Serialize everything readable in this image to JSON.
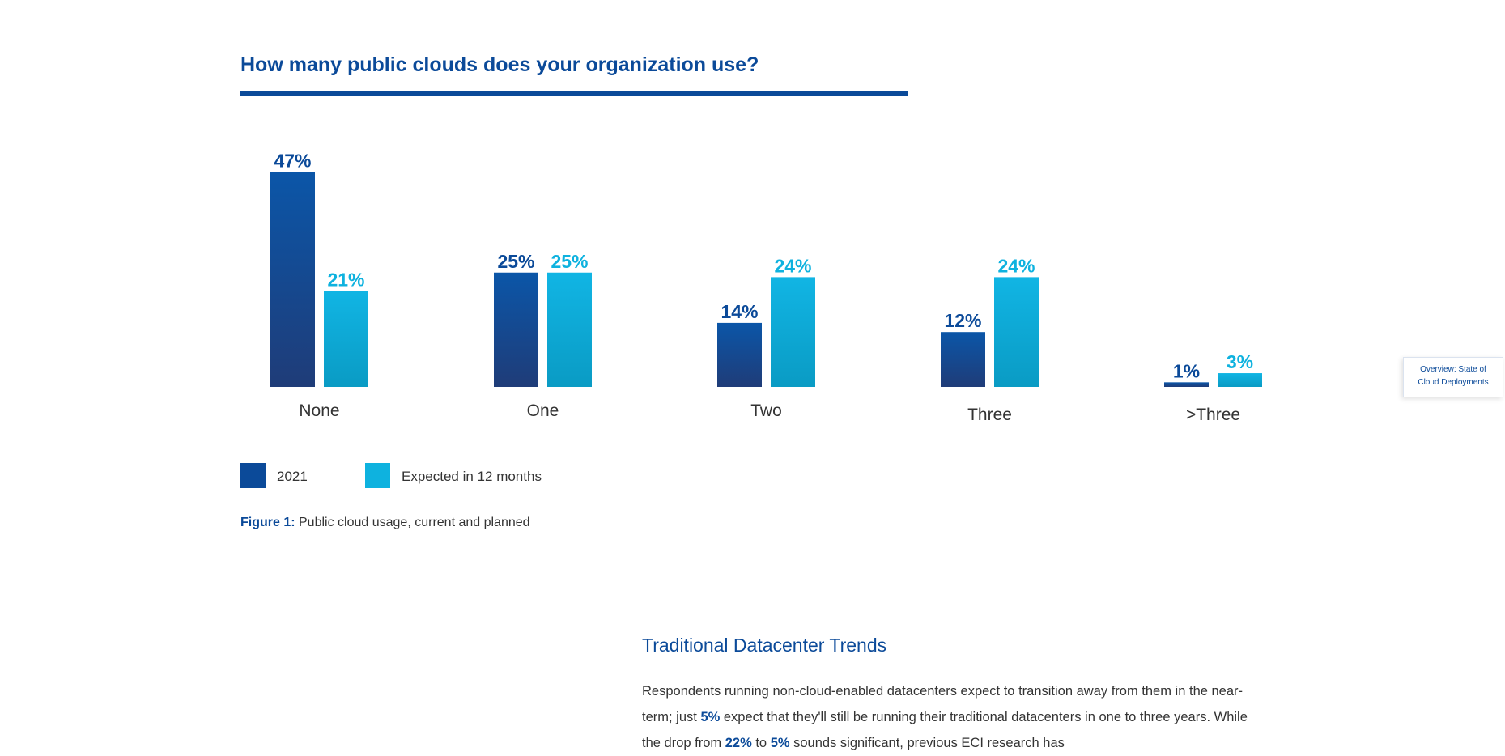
{
  "chart_data": {
    "type": "bar",
    "title": "How many public clouds does your organization use?",
    "categories": [
      "None",
      "One",
      "Two",
      "Three",
      ">Three"
    ],
    "series": [
      {
        "name": "2021",
        "values": [
          47,
          25,
          14,
          12,
          1
        ],
        "color": "#0b4a99"
      },
      {
        "name": "Expected in 12 months",
        "values": [
          21,
          25,
          24,
          24,
          3
        ],
        "color": "#0eb2df"
      }
    ],
    "value_suffix": "%",
    "grid": false,
    "legend_position": "bottom-left"
  },
  "caption": {
    "label": "Figure 1:",
    "text": " Public cloud usage, current and planned"
  },
  "side_tab": {
    "line1": "Overview: State of",
    "line2": "Cloud Deployments"
  },
  "section": {
    "heading": "Traditional Datacenter Trends",
    "paragraph": [
      {
        "t": "Respondents running non-cloud-enabled datacenters expect to transition away from them in the near-term; just "
      },
      {
        "b": "5%"
      },
      {
        "t": " expect that they'll still be running their traditional datacenters in one to three years. While the drop from "
      },
      {
        "b": "22%"
      },
      {
        "t": " to "
      },
      {
        "b": "5%"
      },
      {
        "t": " sounds significant, previous ECI research has"
      }
    ]
  }
}
